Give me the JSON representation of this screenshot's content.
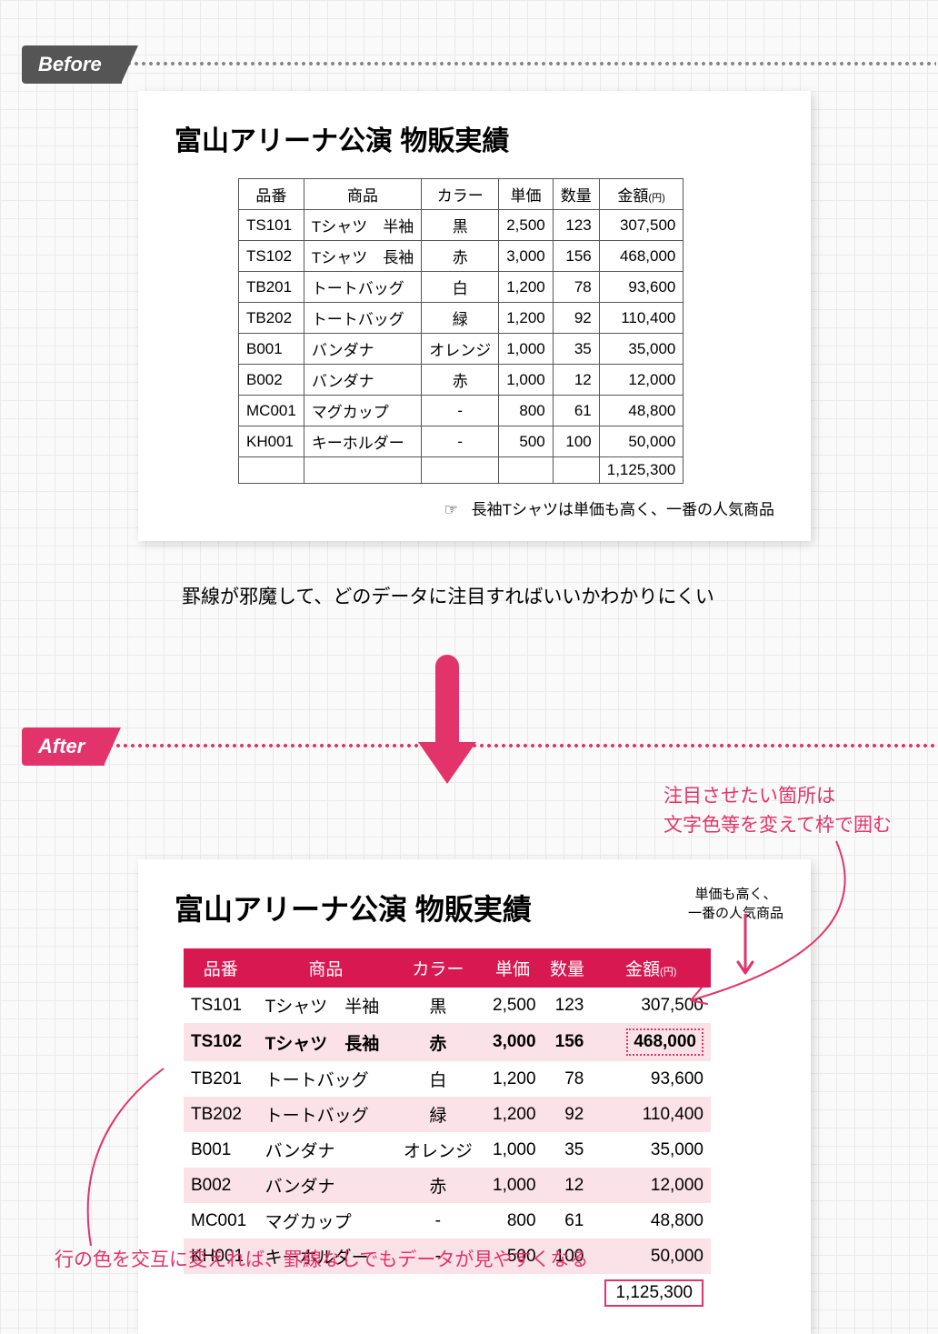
{
  "badges": {
    "before": "Before",
    "after": "After"
  },
  "title": "富山アリーナ公演  物販実績",
  "columns": [
    "品番",
    "商品",
    "カラー",
    "単価",
    "数量",
    "金額"
  ],
  "yen_suffix": "(円)",
  "rows": [
    {
      "code": "TS101",
      "name": "Tシャツ　半袖",
      "color": "黒",
      "price": "2,500",
      "qty": "123",
      "amt": "307,500"
    },
    {
      "code": "TS102",
      "name": "Tシャツ　長袖",
      "color": "赤",
      "price": "3,000",
      "qty": "156",
      "amt": "468,000",
      "highlight": true
    },
    {
      "code": "TB201",
      "name": "トートバッグ",
      "color": "白",
      "price": "1,200",
      "qty": "78",
      "amt": "93,600"
    },
    {
      "code": "TB202",
      "name": "トートバッグ",
      "color": "緑",
      "price": "1,200",
      "qty": "92",
      "amt": "110,400"
    },
    {
      "code": "B001",
      "name": "バンダナ",
      "color": "オレンジ",
      "price": "1,000",
      "qty": "35",
      "amt": "35,000"
    },
    {
      "code": "B002",
      "name": "バンダナ",
      "color": "赤",
      "price": "1,000",
      "qty": "12",
      "amt": "12,000"
    },
    {
      "code": "MC001",
      "name": "マグカップ",
      "color": "-",
      "price": "800",
      "qty": "61",
      "amt": "48,800"
    },
    {
      "code": "KH001",
      "name": "キーホルダー",
      "color": "-",
      "price": "500",
      "qty": "100",
      "amt": "50,000"
    }
  ],
  "total": "1,125,300",
  "before_note": "長袖Tシャツは単価も高く、一番の人気商品",
  "before_note_icon": "☞",
  "caption_before": "罫線が邪魔して、どのデータに注目すればいいかわかりにくい",
  "callout_top": "注目させたい箇所は\n文字色等を変えて枠で囲む",
  "callout_bottom": "行の色を交互に変えれば、罫線なしでもデータが見やすくなる",
  "sidenote": "単価も高く、\n一番の人気商品",
  "styling": {
    "accent": "#e2346a",
    "header_bg": "#d81850",
    "alt_row_bg": "#fbe2e8",
    "before_border": "#555",
    "grid_bg": "#eaeaea",
    "panel_bg": "#ffffff",
    "font_size_title": 30,
    "font_size_table_before": 17,
    "font_size_table_after": 19,
    "font_size_caption": 21
  }
}
